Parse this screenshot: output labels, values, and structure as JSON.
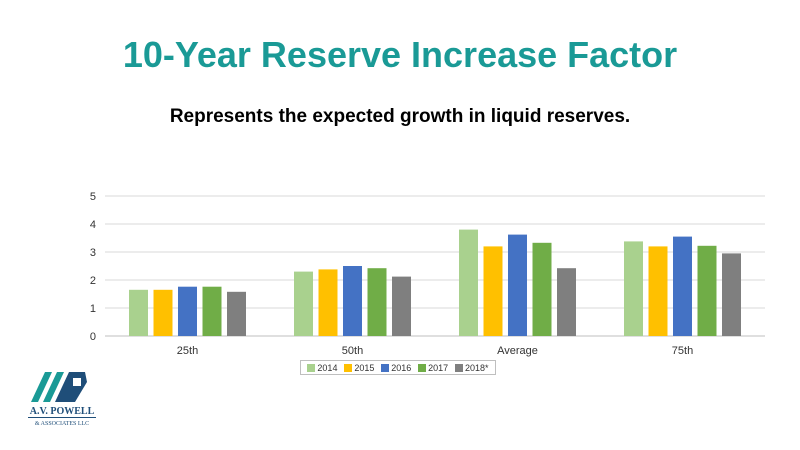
{
  "title": "10-Year Reserve Increase Factor",
  "subtitle": "Represents the expected growth in liquid reserves.",
  "logo": {
    "name": "A.V. POWELL",
    "tagline": "& ASSOCIATES LLC",
    "colors": [
      "#1a9a96",
      "#1f4e79"
    ]
  },
  "chart_data": {
    "type": "bar",
    "categories": [
      "25th",
      "50th",
      "Average",
      "75th"
    ],
    "series": [
      {
        "name": "2014",
        "color": "#a9d18e",
        "values": [
          1.65,
          2.3,
          3.8,
          3.38
        ]
      },
      {
        "name": "2015",
        "color": "#ffc000",
        "values": [
          1.65,
          2.38,
          3.2,
          3.2
        ]
      },
      {
        "name": "2016",
        "color": "#4472c4",
        "values": [
          1.76,
          2.5,
          3.62,
          3.55
        ]
      },
      {
        "name": "2017",
        "color": "#70ad47",
        "values": [
          1.76,
          2.42,
          3.33,
          3.22
        ]
      },
      {
        "name": "2018*",
        "color": "#7f7f7f",
        "values": [
          1.58,
          2.12,
          2.42,
          2.95
        ]
      }
    ],
    "yticks": [
      "0",
      "1",
      "2",
      "3",
      "4",
      "5"
    ],
    "ylim": [
      0,
      5
    ],
    "grid": true,
    "legend": "bottom"
  }
}
